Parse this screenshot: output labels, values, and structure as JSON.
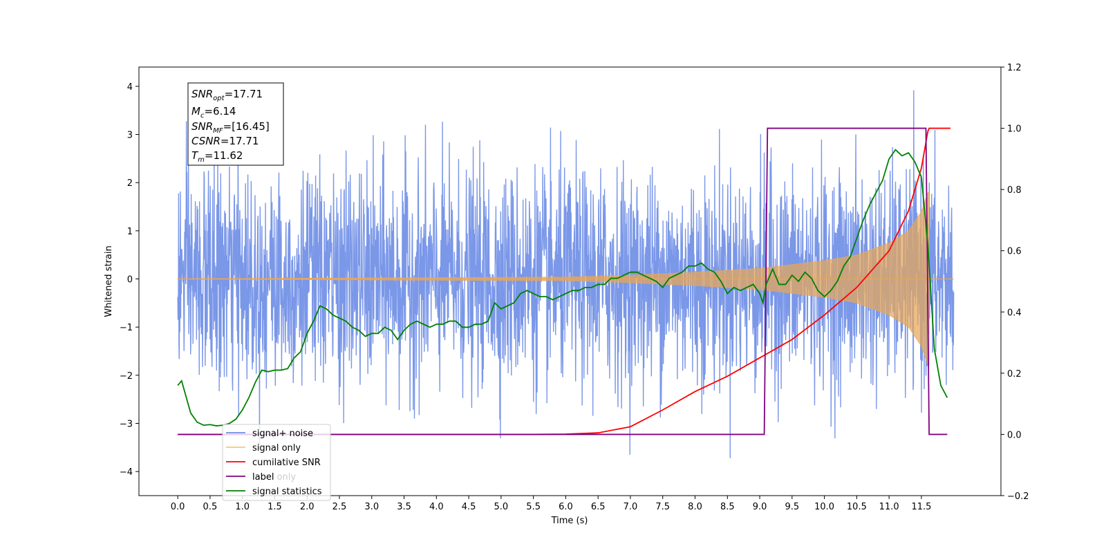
{
  "chart_data": {
    "type": "line",
    "xlabel": "Time (s)",
    "ylabel_left": "Whitened strain",
    "ylabel_right": "",
    "xlim": [
      -0.6,
      12.73
    ],
    "ylim_left": [
      -4.5,
      4.4
    ],
    "ylim_right": [
      -0.2,
      1.2
    ],
    "x_ticks": [
      "0.0",
      "0.5",
      "1.0",
      "1.5",
      "2.0",
      "2.5",
      "3.0",
      "3.5",
      "4.0",
      "4.5",
      "5.0",
      "5.5",
      "6.0",
      "6.5",
      "7.0",
      "7.5",
      "8.0",
      "8.5",
      "9.0",
      "9.5",
      "10.0",
      "10.5",
      "11.0",
      "11.5"
    ],
    "y_ticks_left": [
      "4",
      "3",
      "2",
      "1",
      "0",
      "−1",
      "−2",
      "−3",
      "−4"
    ],
    "y_ticks_right": [
      "1.2",
      "1.0",
      "0.8",
      "0.6",
      "0.4",
      "0.2",
      "0.0",
      "−0.2"
    ],
    "grid": false,
    "legend_position": "lower-left",
    "series": [
      {
        "name": "signal+ noise",
        "axis": "left",
        "color": "#6b8ce6",
        "description_points": "dense noise, mostly within ±2.5, peaks to about ±4",
        "sample_duration_s": 12.0
      },
      {
        "name": "signal only",
        "axis": "left",
        "color": "#e8a658",
        "chirp": {
          "merger_time": 11.62,
          "envelope": [
            [
              0.0,
              0.005
            ],
            [
              6.0,
              0.04
            ],
            [
              7.0,
              0.08
            ],
            [
              8.0,
              0.14
            ],
            [
              9.0,
              0.22
            ],
            [
              10.0,
              0.38
            ],
            [
              10.5,
              0.5
            ],
            [
              11.0,
              0.75
            ],
            [
              11.3,
              1.0
            ],
            [
              11.5,
              1.4
            ],
            [
              11.6,
              1.8
            ]
          ]
        }
      },
      {
        "name": "cumilative SNR",
        "axis": "right",
        "color": "#ff0000",
        "x": [
          0.0,
          5.5,
          6.0,
          6.5,
          7.0,
          7.5,
          8.0,
          8.5,
          9.0,
          9.5,
          10.0,
          10.5,
          11.0,
          11.3,
          11.5,
          11.6,
          11.62,
          11.95
        ],
        "y": [
          0.0,
          0.0,
          0.001,
          0.005,
          0.025,
          0.08,
          0.14,
          0.19,
          0.25,
          0.31,
          0.39,
          0.48,
          0.6,
          0.73,
          0.87,
          0.99,
          1.0,
          1.0
        ]
      },
      {
        "name": "label",
        "axis": "right",
        "color": "#800080",
        "x": [
          0.0,
          9.07,
          9.12,
          11.57,
          11.62,
          11.9
        ],
        "y": [
          0.0,
          0.0,
          1.0,
          1.0,
          0.0,
          0.0
        ]
      },
      {
        "name": "label only",
        "axis": "right",
        "color": "#800080",
        "hidden": true
      },
      {
        "name": "signal statistics",
        "axis": "right",
        "color": "#008000",
        "x": [
          0.0,
          0.06,
          0.12,
          0.2,
          0.3,
          0.4,
          0.5,
          0.6,
          0.7,
          0.8,
          0.9,
          1.0,
          1.1,
          1.2,
          1.3,
          1.4,
          1.5,
          1.6,
          1.7,
          1.8,
          1.9,
          2.0,
          2.1,
          2.2,
          2.3,
          2.4,
          2.5,
          2.6,
          2.7,
          2.8,
          2.9,
          3.0,
          3.1,
          3.2,
          3.3,
          3.4,
          3.5,
          3.6,
          3.7,
          3.8,
          3.9,
          4.0,
          4.1,
          4.2,
          4.3,
          4.4,
          4.5,
          4.6,
          4.7,
          4.8,
          4.9,
          5.0,
          5.1,
          5.2,
          5.3,
          5.4,
          5.5,
          5.6,
          5.7,
          5.8,
          5.9,
          6.0,
          6.1,
          6.2,
          6.3,
          6.4,
          6.5,
          6.6,
          6.7,
          6.8,
          6.9,
          7.0,
          7.1,
          7.2,
          7.3,
          7.4,
          7.5,
          7.6,
          7.7,
          7.8,
          7.9,
          8.0,
          8.1,
          8.2,
          8.3,
          8.4,
          8.5,
          8.6,
          8.7,
          8.8,
          8.9,
          9.0,
          9.05,
          9.1,
          9.2,
          9.3,
          9.4,
          9.5,
          9.6,
          9.7,
          9.8,
          9.9,
          10.0,
          10.1,
          10.2,
          10.3,
          10.4,
          10.5,
          10.6,
          10.7,
          10.8,
          10.9,
          11.0,
          11.1,
          11.2,
          11.3,
          11.4,
          11.5,
          11.6,
          11.7,
          11.8,
          11.9
        ],
        "y": [
          0.16,
          0.175,
          0.13,
          0.07,
          0.04,
          0.03,
          0.032,
          0.028,
          0.03,
          0.036,
          0.05,
          0.08,
          0.12,
          0.17,
          0.21,
          0.205,
          0.21,
          0.21,
          0.215,
          0.25,
          0.27,
          0.33,
          0.37,
          0.42,
          0.41,
          0.39,
          0.38,
          0.37,
          0.35,
          0.34,
          0.32,
          0.33,
          0.33,
          0.35,
          0.34,
          0.31,
          0.34,
          0.36,
          0.37,
          0.36,
          0.35,
          0.36,
          0.36,
          0.37,
          0.37,
          0.35,
          0.35,
          0.36,
          0.36,
          0.37,
          0.43,
          0.41,
          0.42,
          0.43,
          0.46,
          0.47,
          0.46,
          0.45,
          0.45,
          0.44,
          0.45,
          0.46,
          0.47,
          0.47,
          0.48,
          0.48,
          0.49,
          0.49,
          0.51,
          0.51,
          0.52,
          0.53,
          0.53,
          0.52,
          0.51,
          0.5,
          0.48,
          0.51,
          0.52,
          0.53,
          0.55,
          0.55,
          0.56,
          0.54,
          0.53,
          0.5,
          0.46,
          0.48,
          0.47,
          0.48,
          0.49,
          0.46,
          0.43,
          0.49,
          0.54,
          0.49,
          0.49,
          0.52,
          0.5,
          0.53,
          0.51,
          0.47,
          0.45,
          0.47,
          0.5,
          0.55,
          0.58,
          0.64,
          0.7,
          0.75,
          0.79,
          0.83,
          0.9,
          0.93,
          0.91,
          0.92,
          0.89,
          0.84,
          0.62,
          0.28,
          0.16,
          0.12
        ]
      }
    ]
  },
  "info_box": {
    "snr_opt": {
      "main": "SNR",
      "sub": "opt",
      "value": "=17.71"
    },
    "mc": {
      "main": "M",
      "sub": "c",
      "value": "=6.14"
    },
    "snr_mf": {
      "main": "SNR",
      "sub": "MF",
      "value": "=[16.45]"
    },
    "csnr": {
      "main": "CSNR",
      "value": "=17.71"
    },
    "tm": {
      "main": "T",
      "sub": "m",
      "value": "=11.62"
    }
  }
}
